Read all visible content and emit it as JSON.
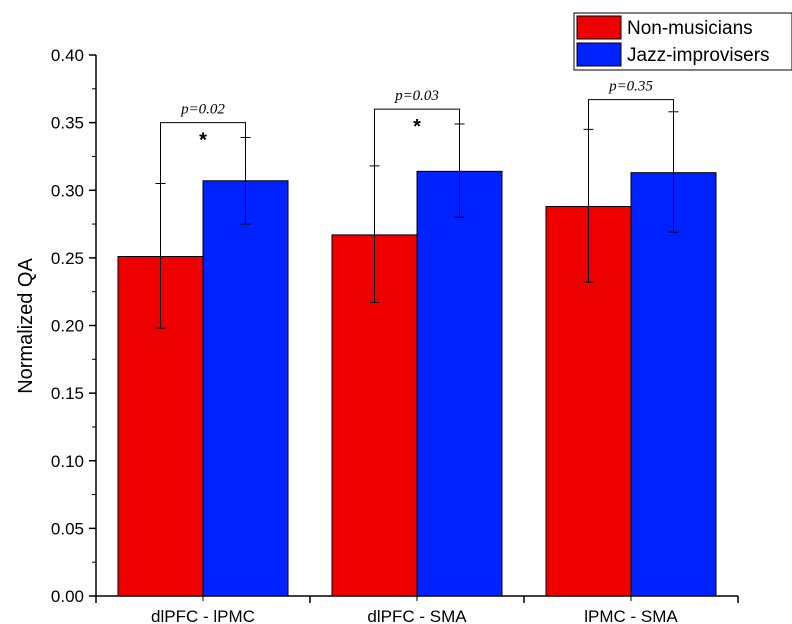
{
  "chart_data": {
    "type": "bar",
    "ylabel": "Normalized QA",
    "xlabel": "",
    "ylim": [
      0.0,
      0.4
    ],
    "yticks": [
      "0.00",
      "0.05",
      "0.10",
      "0.15",
      "0.20",
      "0.25",
      "0.30",
      "0.35",
      "0.40"
    ],
    "categories": [
      "dlPFC - lPMC",
      "dlPFC - SMA",
      "lPMC - SMA"
    ],
    "series": [
      {
        "name": "Non-musicians",
        "color": "#ee0000",
        "values": [
          0.251,
          0.267,
          0.288
        ],
        "error_low": [
          0.198,
          0.217,
          0.232
        ],
        "error_high": [
          0.305,
          0.318,
          0.345
        ]
      },
      {
        "name": "Jazz-improvisers",
        "color": "#0022ff",
        "values": [
          0.307,
          0.314,
          0.313
        ],
        "error_low": [
          0.275,
          0.28,
          0.269
        ],
        "error_high": [
          0.339,
          0.349,
          0.358
        ]
      }
    ],
    "comparisons": [
      {
        "category": "dlPFC - lPMC",
        "p_text": "p=0.02",
        "star": "*",
        "bracket_y": 0.35
      },
      {
        "category": "dlPFC - SMA",
        "p_text": "p=0.03",
        "star": "*",
        "bracket_y": 0.36
      },
      {
        "category": "lPMC - SMA",
        "p_text": "p=0.35",
        "star": "",
        "bracket_y": 0.367
      }
    ],
    "legend_position": "top-right",
    "grid": false
  }
}
